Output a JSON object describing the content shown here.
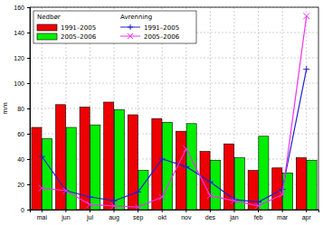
{
  "chart_data": {
    "type": "bar",
    "y_label": "mm",
    "legend_titles": [
      "Nedbør",
      "Avrenning"
    ],
    "categories": [
      "mai",
      "jun",
      "jul",
      "aug",
      "sep",
      "okt",
      "nov",
      "des",
      "jan",
      "feb",
      "mar",
      "apr"
    ],
    "series": [
      {
        "name": "1991–2005",
        "type": "bar",
        "color": "#ee0000",
        "values": [
          65,
          83,
          81,
          85,
          75,
          72,
          62,
          46,
          52,
          31,
          33,
          41
        ]
      },
      {
        "name": "2005–2006",
        "type": "bar",
        "color": "#00ee00",
        "values": [
          56,
          65,
          67,
          79,
          31,
          69,
          68,
          39,
          41,
          58,
          29,
          39
        ]
      },
      {
        "name": "1991–2005",
        "type": "line",
        "color": "#2222cc",
        "marker": "plus",
        "values": [
          42,
          15,
          10,
          7,
          14,
          40,
          34,
          22,
          8,
          6,
          16,
          111
        ]
      },
      {
        "name": "2005–2006",
        "type": "line",
        "color": "#ee33ee",
        "marker": "x",
        "values": [
          17,
          15,
          4,
          3,
          2,
          10,
          48,
          11,
          7,
          3,
          12,
          153
        ]
      }
    ],
    "ylim": [
      0,
      160
    ],
    "yticks": [
      0,
      20,
      40,
      60,
      80,
      100,
      120,
      140,
      160
    ],
    "grid": true,
    "legend": "top-left"
  }
}
